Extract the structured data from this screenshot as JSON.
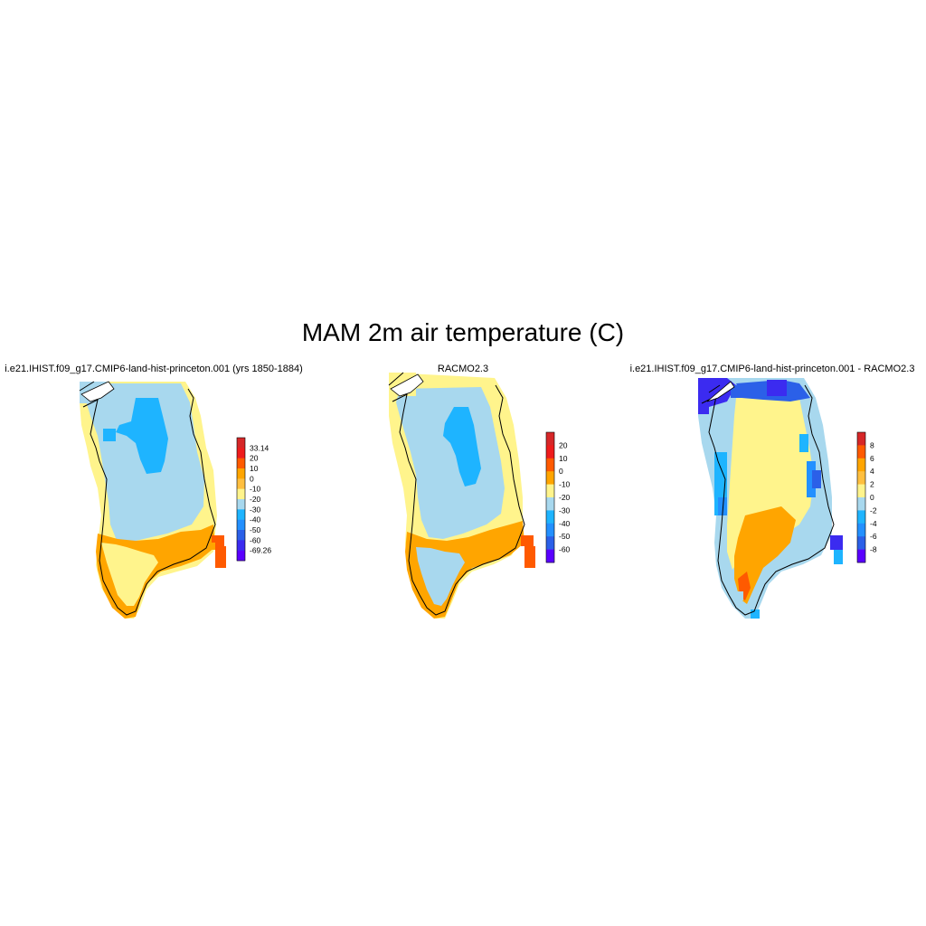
{
  "title": "MAM 2m air temperature (C)",
  "panels": [
    {
      "title": "i.e21.IHIST.f09_g17.CMIP6-land-hist-princeton.001 (yrs 1850-1884)",
      "colorbar": {
        "labels": [
          "33.14",
          "20",
          "10",
          "0",
          "-10",
          "-20",
          "-30",
          "-40",
          "-50",
          "-60",
          "-69.26"
        ],
        "colors": [
          "#d62728",
          "#ee1c1c",
          "#ff5a00",
          "#ffa500",
          "#ffbf3f",
          "#fff48c",
          "#a8d8ee",
          "#1eb4ff",
          "#2390ff",
          "#2b60e8",
          "#3b2bf0",
          "#5a00ff"
        ]
      }
    },
    {
      "title": "RACMO2.3",
      "colorbar": {
        "labels": [
          "20",
          "10",
          "0",
          "-10",
          "-20",
          "-30",
          "-40",
          "-50",
          "-60"
        ],
        "colors": [
          "#d62728",
          "#ee1c1c",
          "#ff5a00",
          "#ffa500",
          "#fff48c",
          "#a8d8ee",
          "#1eb4ff",
          "#2390ff",
          "#2b60e8",
          "#5a00ff"
        ]
      }
    },
    {
      "title": "i.e21.IHIST.f09_g17.CMIP6-land-hist-princeton.001 - RACMO2.3",
      "colorbar": {
        "labels": [
          "8",
          "6",
          "4",
          "2",
          "0",
          "-2",
          "-4",
          "-6",
          "-8"
        ],
        "colors": [
          "#d62728",
          "#ff5a00",
          "#ffa500",
          "#ffbf3f",
          "#fff48c",
          "#a8d8ee",
          "#1eb4ff",
          "#2390ff",
          "#2b60e8",
          "#5a00ff"
        ]
      }
    }
  ]
}
